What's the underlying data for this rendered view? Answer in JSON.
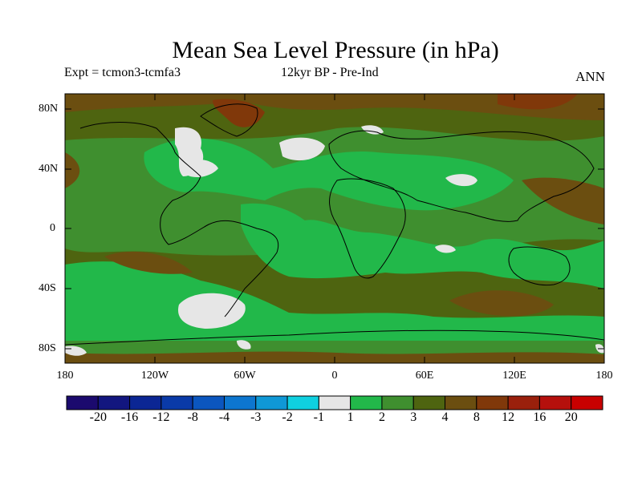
{
  "title": "Mean Sea Level Pressure (in hPa)",
  "experiment": "Expt = tcmon3-tcmfa3",
  "period": "12kyr BP - Pre-Ind",
  "season": "ANN",
  "lat_labels": [
    "80N",
    "40N",
    "0",
    "40S",
    "80S"
  ],
  "lon_labels": [
    "180",
    "120W",
    "60W",
    "0",
    "60E",
    "120E",
    "180"
  ],
  "colorbar": {
    "colors": [
      "#1b0a6e",
      "#12167f",
      "#0b2694",
      "#0a3aa8",
      "#0b56bf",
      "#0d76cf",
      "#0f98d6",
      "#0fd0e0",
      "#e6e6e6",
      "#22b84a",
      "#3f8f2f",
      "#4e6410",
      "#6b4e10",
      "#80380a",
      "#9a200c",
      "#b5100c",
      "#c80000"
    ],
    "labels": [
      "-20",
      "-16",
      "-12",
      "-8",
      "-4",
      "-3",
      "-2",
      "-1",
      "1",
      "2",
      "3",
      "4",
      "8",
      "12",
      "16",
      "20"
    ]
  },
  "colors": {
    "low_anomaly": "#e6e6e6",
    "light_green": "#22b84a",
    "mid_green": "#3f8f2f",
    "olive": "#4e6410",
    "brown": "#6b4e10",
    "rust": "#80380a",
    "red": "#9a200c"
  }
}
